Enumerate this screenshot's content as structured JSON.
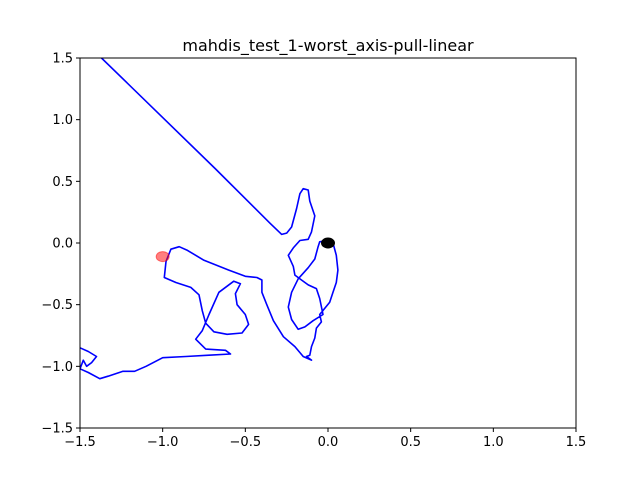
{
  "chart_data": {
    "type": "line",
    "title": "mahdis_test_1-worst_axis-pull-linear",
    "xlabel": "",
    "ylabel": "",
    "xlim": [
      -1.5,
      1.5
    ],
    "ylim": [
      -1.5,
      1.5
    ],
    "xticks": [
      -1.5,
      -1.0,
      -0.5,
      0.0,
      0.5,
      1.0,
      1.5
    ],
    "yticks": [
      -1.5,
      -1.0,
      -0.5,
      0.0,
      0.5,
      1.0,
      1.5
    ],
    "xtick_labels": [
      "−1.5",
      "−1.0",
      "−0.5",
      "0.0",
      "0.5",
      "1.0",
      "1.5"
    ],
    "ytick_labels": [
      "−1.5",
      "−1.0",
      "−0.5",
      "0.0",
      "0.5",
      "1.0",
      "1.5"
    ],
    "grid": false,
    "series": [
      {
        "color": "#0000ff",
        "points": [
          [
            -1.37,
            1.5
          ],
          [
            -0.68,
            0.6
          ],
          [
            -0.35,
            0.16
          ],
          [
            -0.28,
            0.07
          ],
          [
            -0.25,
            0.08
          ],
          [
            -0.22,
            0.13
          ],
          [
            -0.19,
            0.28
          ],
          [
            -0.17,
            0.4
          ],
          [
            -0.15,
            0.44
          ],
          [
            -0.12,
            0.43
          ],
          [
            -0.11,
            0.34
          ],
          [
            -0.08,
            0.22
          ],
          [
            -0.1,
            0.09
          ],
          [
            -0.12,
            0.03
          ],
          [
            -0.17,
            0.02
          ],
          [
            -0.21,
            -0.04
          ],
          [
            -0.24,
            -0.1
          ],
          [
            -0.21,
            -0.19
          ],
          [
            -0.2,
            -0.26
          ],
          [
            -0.16,
            -0.3
          ],
          [
            -0.12,
            -0.34
          ],
          [
            -0.07,
            -0.37
          ],
          [
            -0.05,
            -0.45
          ],
          [
            -0.03,
            -0.58
          ],
          [
            -0.09,
            -0.63
          ],
          [
            -0.14,
            -0.68
          ],
          [
            -0.18,
            -0.7
          ],
          [
            -0.22,
            -0.62
          ],
          [
            -0.24,
            -0.52
          ],
          [
            -0.22,
            -0.4
          ],
          [
            -0.18,
            -0.29
          ],
          [
            -0.12,
            -0.2
          ],
          [
            -0.08,
            -0.13
          ],
          [
            -0.06,
            -0.03
          ],
          [
            -0.05,
            0.01
          ],
          [
            -0.01,
            0.02
          ],
          [
            0.03,
            0.0
          ],
          [
            0.05,
            -0.1
          ],
          [
            0.06,
            -0.22
          ],
          [
            0.05,
            -0.32
          ],
          [
            0.03,
            -0.4
          ],
          [
            0.01,
            -0.48
          ],
          [
            -0.02,
            -0.53
          ],
          [
            -0.05,
            -0.58
          ],
          [
            -0.04,
            -0.64
          ],
          [
            -0.07,
            -0.69
          ],
          [
            -0.08,
            -0.77
          ],
          [
            -0.1,
            -0.84
          ],
          [
            -0.11,
            -0.91
          ],
          [
            -0.13,
            -0.92
          ],
          [
            -0.1,
            -0.95
          ],
          [
            -0.15,
            -0.92
          ],
          [
            -0.2,
            -0.84
          ],
          [
            -0.27,
            -0.76
          ],
          [
            -0.33,
            -0.63
          ],
          [
            -0.37,
            -0.5
          ],
          [
            -0.4,
            -0.4
          ],
          [
            -0.4,
            -0.3
          ],
          [
            -0.43,
            -0.28
          ],
          [
            -0.5,
            -0.27
          ],
          [
            -0.6,
            -0.22
          ],
          [
            -0.75,
            -0.14
          ],
          [
            -0.85,
            -0.06
          ],
          [
            -0.9,
            -0.03
          ],
          [
            -0.95,
            -0.05
          ],
          [
            -0.98,
            -0.15
          ],
          [
            -0.99,
            -0.28
          ],
          [
            -0.92,
            -0.32
          ],
          [
            -0.83,
            -0.36
          ],
          [
            -0.78,
            -0.42
          ],
          [
            -0.76,
            -0.55
          ],
          [
            -0.74,
            -0.65
          ],
          [
            -0.69,
            -0.72
          ],
          [
            -0.61,
            -0.74
          ],
          [
            -0.52,
            -0.73
          ],
          [
            -0.48,
            -0.66
          ],
          [
            -0.5,
            -0.58
          ],
          [
            -0.55,
            -0.5
          ],
          [
            -0.56,
            -0.41
          ],
          [
            -0.53,
            -0.33
          ],
          [
            -0.57,
            -0.31
          ],
          [
            -0.66,
            -0.4
          ],
          [
            -0.72,
            -0.58
          ],
          [
            -0.76,
            -0.71
          ],
          [
            -0.8,
            -0.78
          ],
          [
            -0.74,
            -0.86
          ],
          [
            -0.62,
            -0.87
          ],
          [
            -0.59,
            -0.9
          ],
          [
            -0.72,
            -0.91
          ],
          [
            -0.86,
            -0.92
          ],
          [
            -1.0,
            -0.93
          ],
          [
            -1.1,
            -1.0
          ],
          [
            -1.17,
            -1.04
          ],
          [
            -1.24,
            -1.04
          ],
          [
            -1.33,
            -1.08
          ],
          [
            -1.38,
            -1.1
          ],
          [
            -1.45,
            -1.05
          ],
          [
            -1.5,
            -1.02
          ],
          [
            -1.48,
            -0.95
          ],
          [
            -1.46,
            -1.0
          ],
          [
            -1.43,
            -0.97
          ],
          [
            -1.4,
            -0.92
          ],
          [
            -1.45,
            -0.88
          ],
          [
            -1.5,
            -0.85
          ]
        ]
      }
    ],
    "markers": [
      {
        "x": 0.0,
        "y": 0.0,
        "color": "#000000",
        "alpha": 1.0
      },
      {
        "x": -1.0,
        "y": -0.11,
        "color": "#ff0000",
        "alpha": 0.5
      }
    ]
  }
}
